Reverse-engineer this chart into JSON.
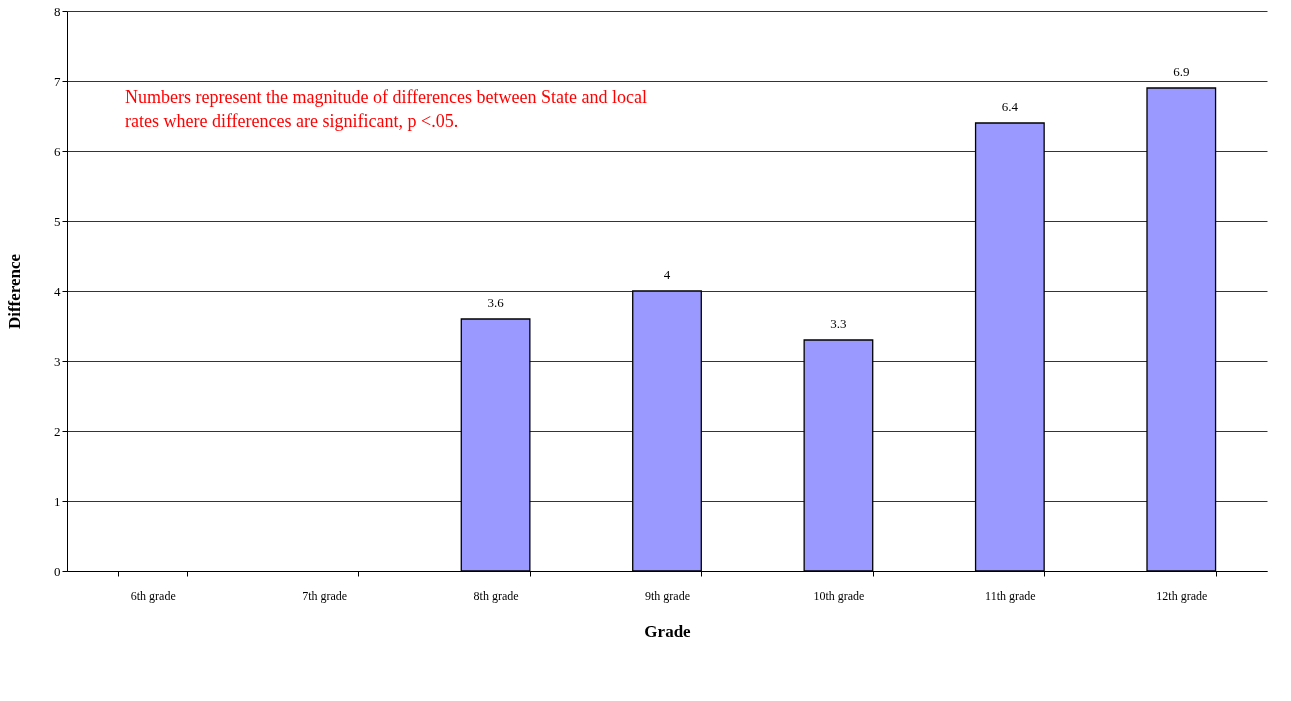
{
  "chart_data": {
    "type": "bar",
    "xlabel": "Grade",
    "ylabel": "Difference",
    "categories": [
      "6th grade",
      "7th grade",
      "8th grade",
      "9th grade",
      "10th grade",
      "11th grade",
      "12th grade"
    ],
    "values": [
      null,
      null,
      3.6,
      4,
      3.3,
      6.4,
      6.9
    ],
    "color": "#9999ff",
    "ylim": [
      0,
      8
    ],
    "yticks": [
      0,
      1,
      2,
      3,
      4,
      5,
      6,
      7,
      8
    ],
    "grid": "y",
    "data_labels": true,
    "annotations": [
      "Numbers represent the magnitude of differences between State and local\nrates where differences are significant, p <.05."
    ]
  }
}
